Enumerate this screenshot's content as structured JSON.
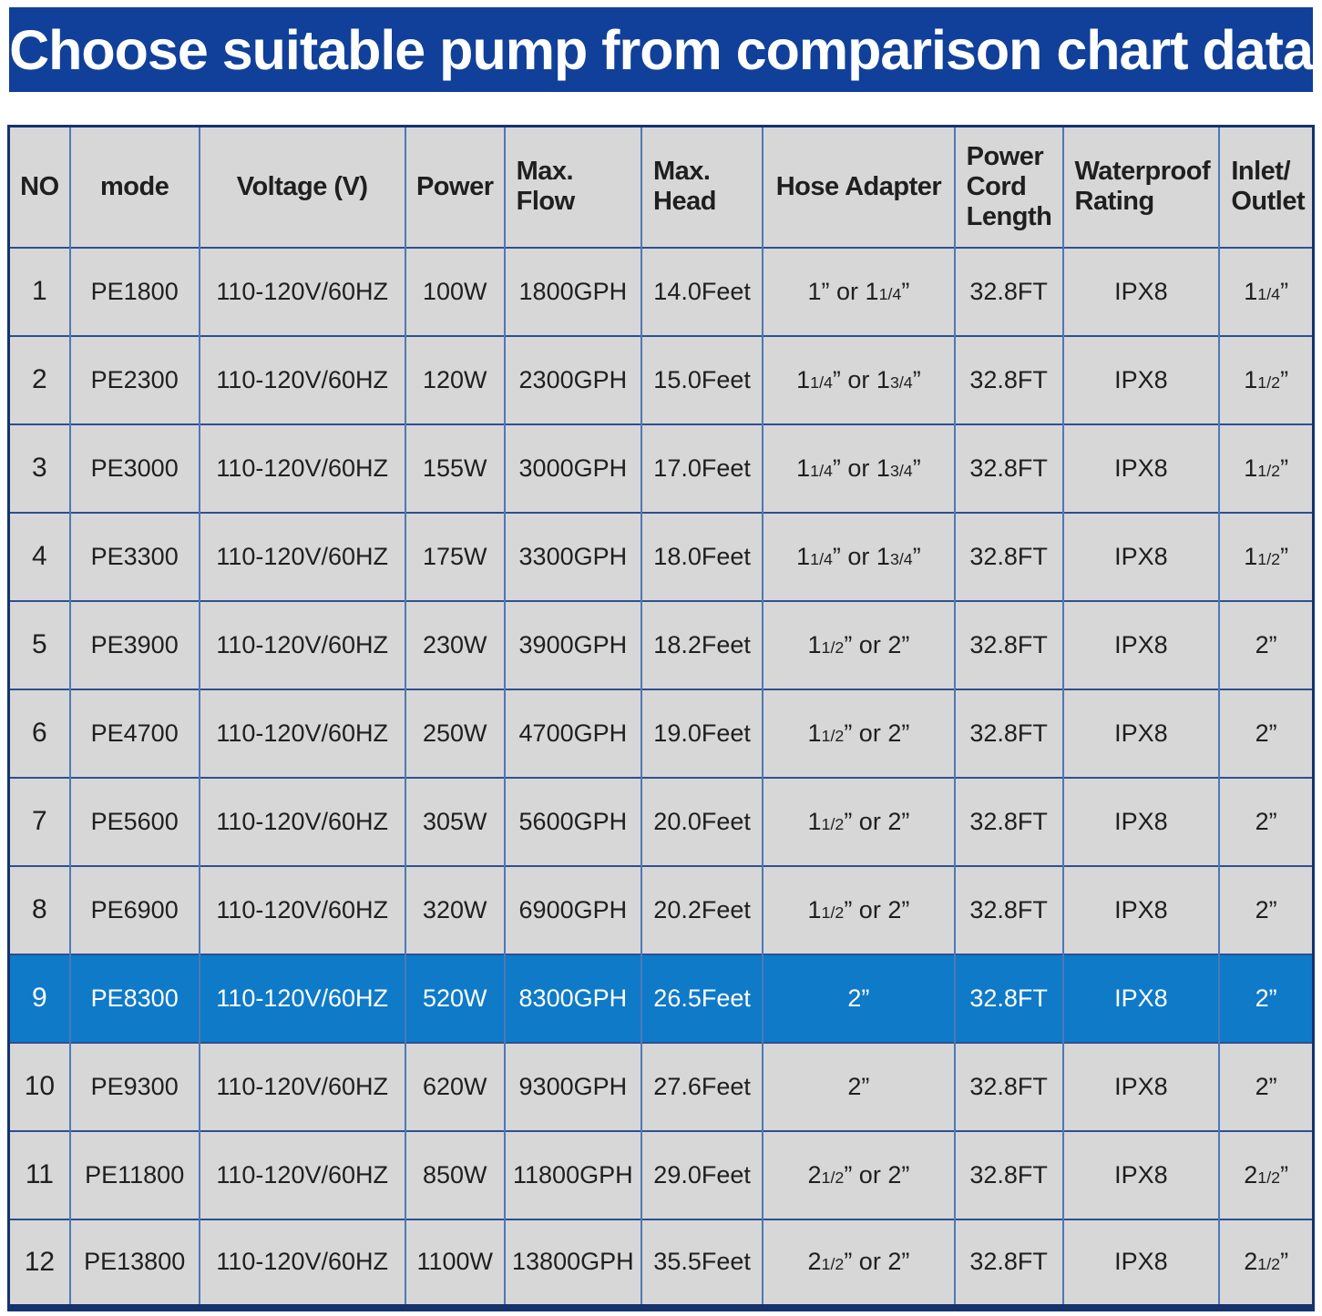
{
  "colors": {
    "banner_bg": "#11409a",
    "banner_text": "#ffffff",
    "cell_bg": "#d7d7d7",
    "highlight_bg": "#0e7ac8",
    "highlight_text": "#ffffff",
    "outer_border": "#16336e",
    "vline": "#4f78b6",
    "hline": "#2e4f91"
  },
  "chart_data": {
    "type": "table",
    "title": "Choose suitable pump from comparison chart data",
    "columns": [
      "NO",
      "mode",
      "Voltage (V)",
      "Power",
      "Max.\nFlow",
      "Max.\nHead",
      "Hose Adapter",
      "Power\nCord\nLength",
      "Waterproof\nRating",
      "Inlet/\nOutlet"
    ],
    "highlighted_row_no": "9",
    "rows": [
      [
        "1",
        "PE1800",
        "110-120V/60HZ",
        "100W",
        "1800GPH",
        "14.0Feet",
        "1” or 11/4”",
        "32.8FT",
        "IPX8",
        "11/4”"
      ],
      [
        "2",
        "PE2300",
        "110-120V/60HZ",
        "120W",
        "2300GPH",
        "15.0Feet",
        "11/4” or 13/4”",
        "32.8FT",
        "IPX8",
        "11/2”"
      ],
      [
        "3",
        "PE3000",
        "110-120V/60HZ",
        "155W",
        "3000GPH",
        "17.0Feet",
        "11/4” or 13/4”",
        "32.8FT",
        "IPX8",
        "11/2”"
      ],
      [
        "4",
        "PE3300",
        "110-120V/60HZ",
        "175W",
        "3300GPH",
        "18.0Feet",
        "11/4” or 13/4”",
        "32.8FT",
        "IPX8",
        "11/2”"
      ],
      [
        "5",
        "PE3900",
        "110-120V/60HZ",
        "230W",
        "3900GPH",
        "18.2Feet",
        "11/2” or 2”",
        "32.8FT",
        "IPX8",
        "2”"
      ],
      [
        "6",
        "PE4700",
        "110-120V/60HZ",
        "250W",
        "4700GPH",
        "19.0Feet",
        "11/2” or 2”",
        "32.8FT",
        "IPX8",
        "2”"
      ],
      [
        "7",
        "PE5600",
        "110-120V/60HZ",
        "305W",
        "5600GPH",
        "20.0Feet",
        "11/2” or 2”",
        "32.8FT",
        "IPX8",
        "2”"
      ],
      [
        "8",
        "PE6900",
        "110-120V/60HZ",
        "320W",
        "6900GPH",
        "20.2Feet",
        "11/2” or 2”",
        "32.8FT",
        "IPX8",
        "2”"
      ],
      [
        "9",
        "PE8300",
        "110-120V/60HZ",
        "520W",
        "8300GPH",
        "26.5Feet",
        "2”",
        "32.8FT",
        "IPX8",
        "2”"
      ],
      [
        "10",
        "PE9300",
        "110-120V/60HZ",
        "620W",
        "9300GPH",
        "27.6Feet",
        "2”",
        "32.8FT",
        "IPX8",
        "2”"
      ],
      [
        "11",
        "PE11800",
        "110-120V/60HZ",
        "850W",
        "11800GPH",
        "29.0Feet",
        "21/2” or 2”",
        "32.8FT",
        "IPX8",
        "21/2”"
      ],
      [
        "12",
        "PE13800",
        "110-120V/60HZ",
        "1100W",
        "13800GPH",
        "35.5Feet",
        "21/2” or 2”",
        "32.8FT",
        "IPX8",
        "21/2”"
      ]
    ]
  }
}
